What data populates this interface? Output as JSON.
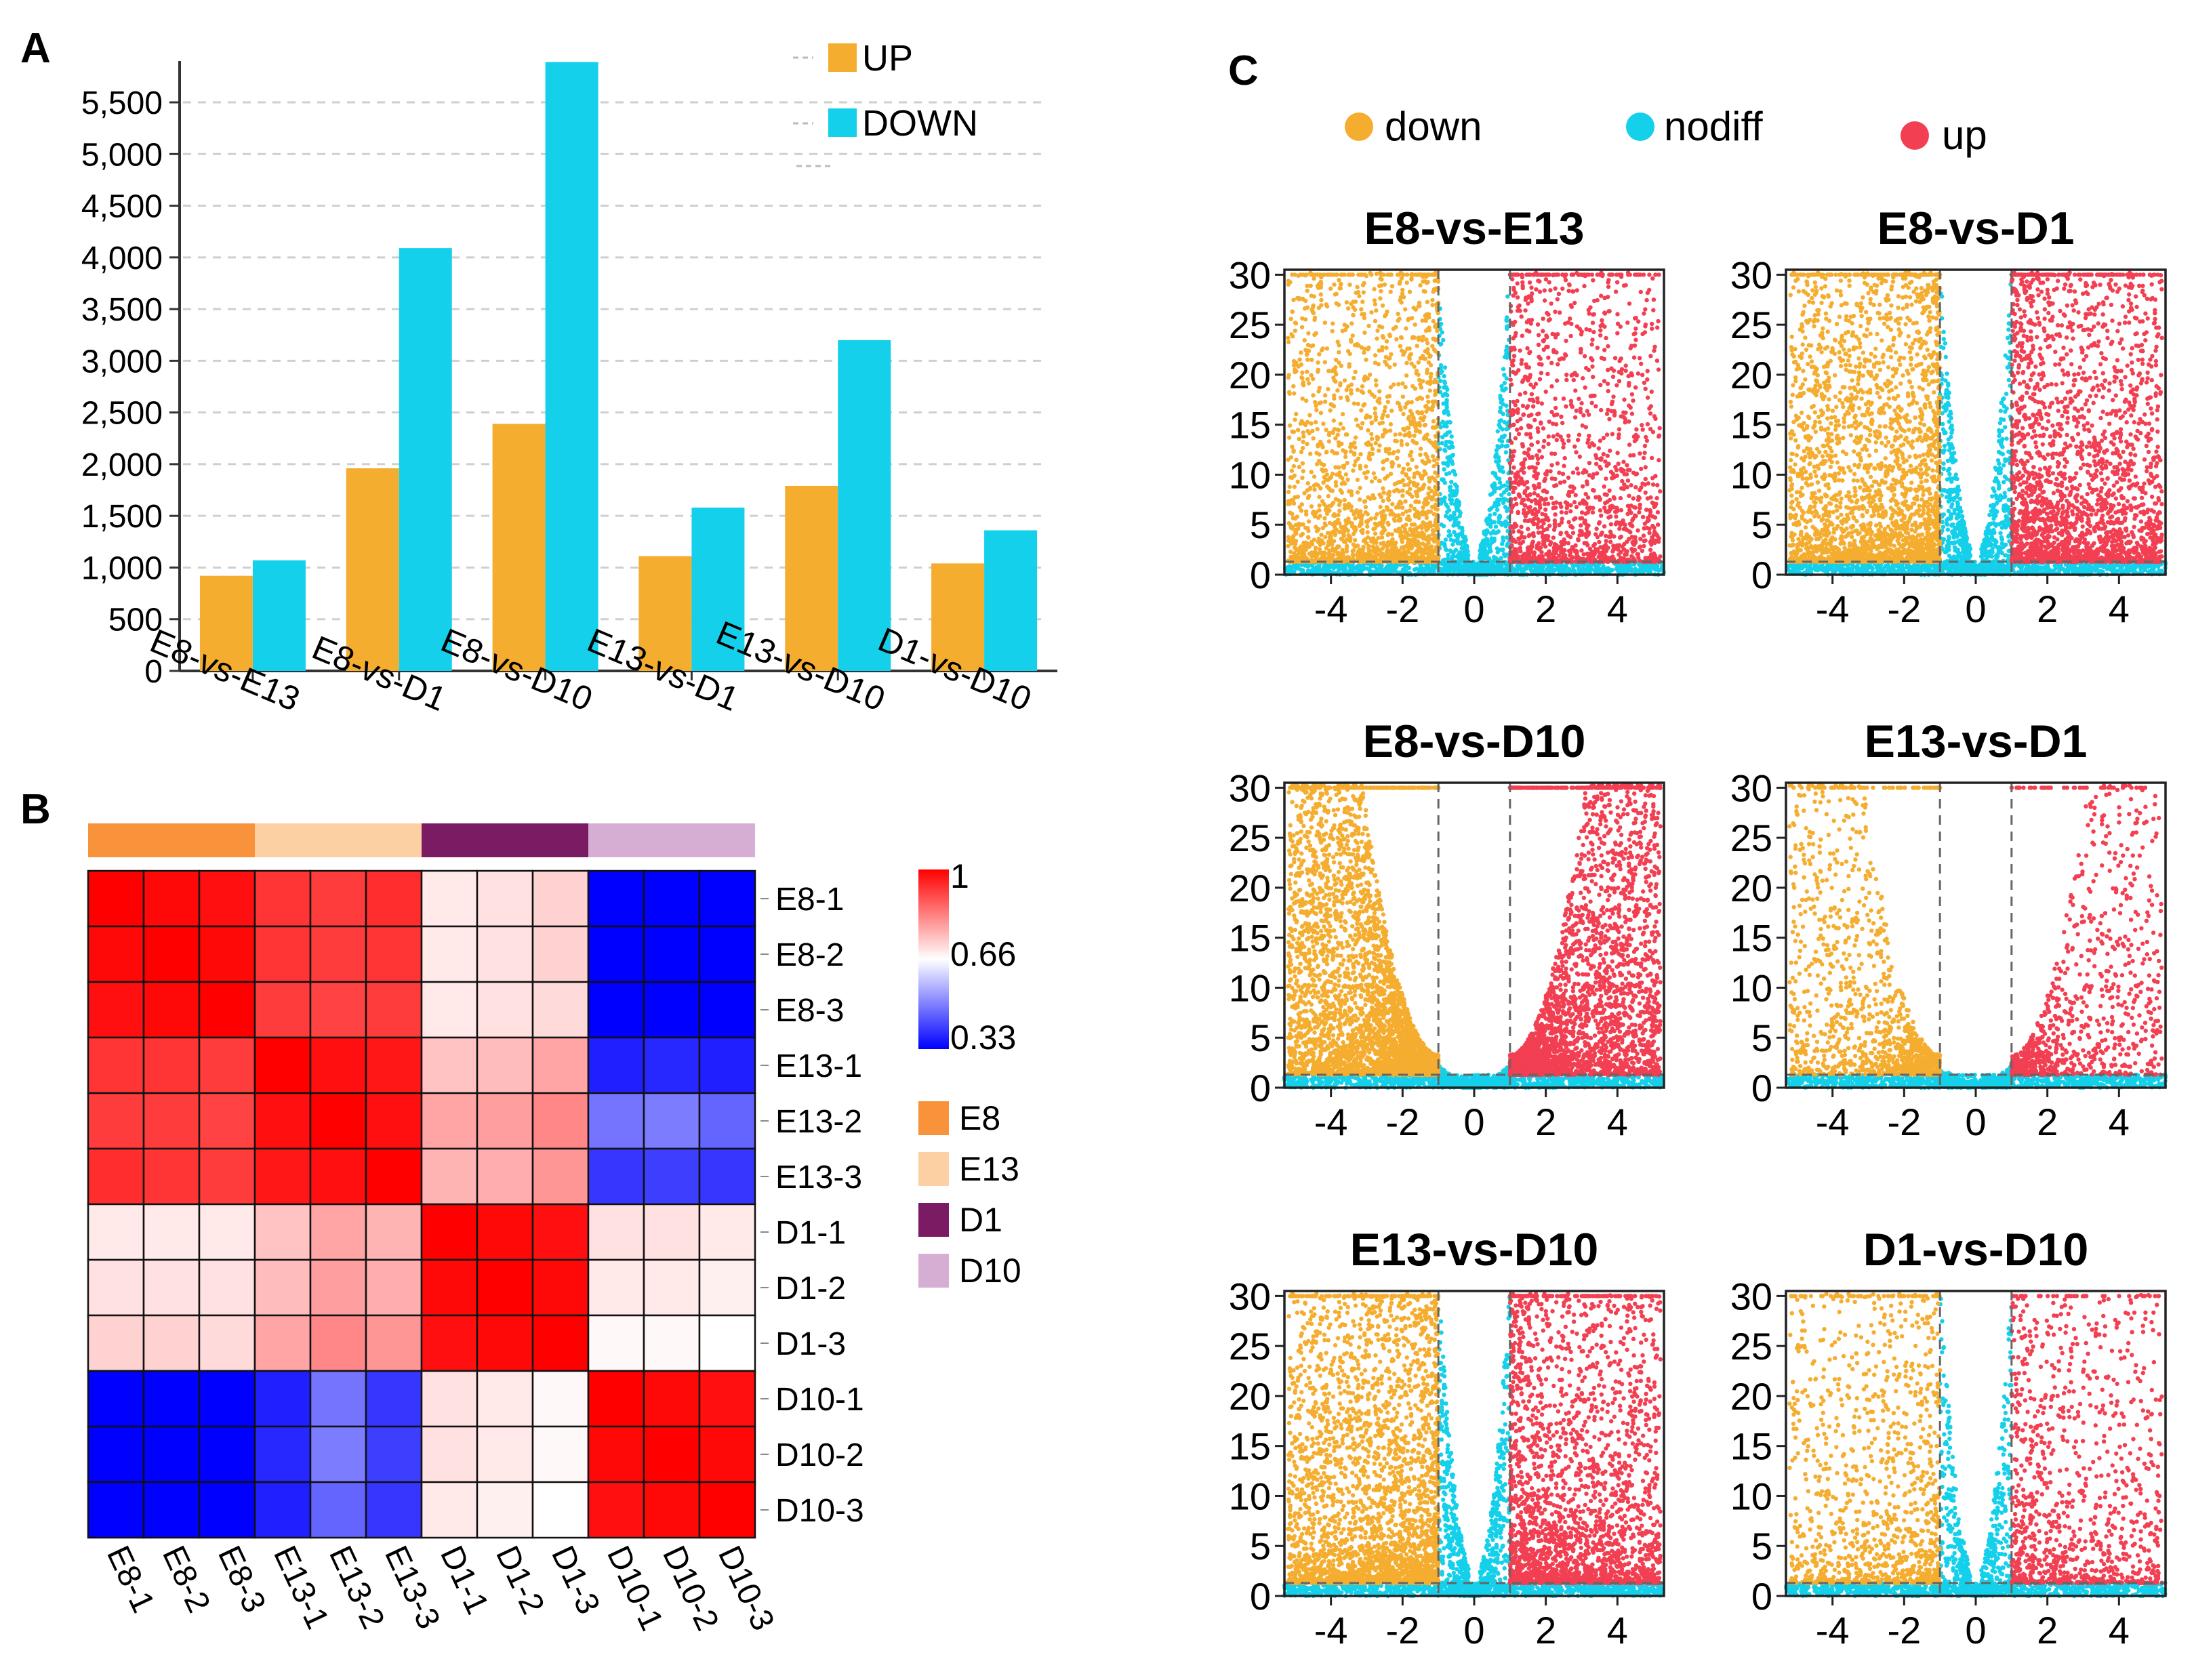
{
  "colors": {
    "up_bar": "#F5AD30",
    "down_bar": "#14D0EA",
    "volcano_down": "#F5AD30",
    "volcano_nodiff": "#14D0EA",
    "volcano_up": "#F23F52",
    "heat_high": "#FF0000",
    "heat_mid": "#FFFFFF",
    "heat_low": "#0000FF",
    "group_E8": "#F8923B",
    "group_E13": "#FCD0A2",
    "group_D1": "#7B1B63",
    "group_D10": "#D7AED3"
  },
  "chart_data": [
    {
      "id": "A",
      "type": "bar",
      "panel_label": "A",
      "categories": [
        "E8-vs-E13",
        "E8-vs-D1",
        "E8-vs-D10",
        "E13-vs-D1",
        "E13-vs-D10",
        "D1-vs-D10"
      ],
      "series": [
        {
          "name": "UP",
          "values": [
            920,
            1960,
            2390,
            1110,
            1790,
            1040
          ]
        },
        {
          "name": "DOWN",
          "values": [
            1070,
            4090,
            5890,
            1580,
            3200,
            1360
          ]
        }
      ],
      "ylim": [
        0,
        5900
      ],
      "yticks": [
        0,
        500,
        1000,
        1500,
        2000,
        2500,
        3000,
        3500,
        4000,
        4500,
        5000,
        5500
      ],
      "ytick_labels": [
        "0",
        "500",
        "1,000",
        "1,500",
        "2,000",
        "2,500",
        "3,000",
        "3,500",
        "4,000",
        "4,500",
        "5,000",
        "5,500"
      ],
      "grid": true,
      "legend": "top-right",
      "legend_labels": [
        "UP",
        "DOWN"
      ]
    },
    {
      "id": "B",
      "type": "heatmap",
      "panel_label": "B",
      "rows": [
        "E8-1",
        "E8-2",
        "E8-3",
        "E13-1",
        "E13-2",
        "E13-3",
        "D1-1",
        "D1-2",
        "D1-3",
        "D10-1",
        "D10-2",
        "D10-3"
      ],
      "cols": [
        "E8-1",
        "E8-2",
        "E8-3",
        "E13-1",
        "E13-2",
        "E13-3",
        "D1-1",
        "D1-2",
        "D1-3",
        "D10-1",
        "D10-2",
        "D10-3"
      ],
      "groups": [
        "E8",
        "E8",
        "E8",
        "E13",
        "E13",
        "E13",
        "D1",
        "D1",
        "D1",
        "D10",
        "D10",
        "D10"
      ],
      "values": [
        [
          1.0,
          0.99,
          0.98,
          0.93,
          0.92,
          0.94,
          0.69,
          0.7,
          0.72,
          0.27,
          0.28,
          0.28
        ],
        [
          0.99,
          1.0,
          0.99,
          0.93,
          0.92,
          0.93,
          0.69,
          0.7,
          0.72,
          0.27,
          0.28,
          0.28
        ],
        [
          0.98,
          0.99,
          1.0,
          0.92,
          0.91,
          0.92,
          0.69,
          0.7,
          0.71,
          0.26,
          0.27,
          0.27
        ],
        [
          0.93,
          0.93,
          0.92,
          1.0,
          0.98,
          0.97,
          0.74,
          0.75,
          0.78,
          0.37,
          0.38,
          0.37
        ],
        [
          0.92,
          0.92,
          0.91,
          0.98,
          1.0,
          0.98,
          0.78,
          0.79,
          0.82,
          0.48,
          0.49,
          0.46
        ],
        [
          0.94,
          0.93,
          0.92,
          0.97,
          0.98,
          1.0,
          0.76,
          0.77,
          0.8,
          0.4,
          0.41,
          0.4
        ],
        [
          0.69,
          0.69,
          0.69,
          0.74,
          0.78,
          0.76,
          1.0,
          0.99,
          0.98,
          0.7,
          0.7,
          0.69
        ],
        [
          0.7,
          0.7,
          0.7,
          0.75,
          0.79,
          0.77,
          0.99,
          1.0,
          0.99,
          0.69,
          0.69,
          0.68
        ],
        [
          0.72,
          0.72,
          0.71,
          0.78,
          0.82,
          0.8,
          0.98,
          0.99,
          1.0,
          0.67,
          0.67,
          0.66
        ],
        [
          0.27,
          0.27,
          0.26,
          0.37,
          0.48,
          0.4,
          0.7,
          0.69,
          0.67,
          1.0,
          0.99,
          0.98
        ],
        [
          0.28,
          0.28,
          0.27,
          0.38,
          0.49,
          0.41,
          0.7,
          0.69,
          0.67,
          0.99,
          1.0,
          0.99
        ],
        [
          0.28,
          0.28,
          0.27,
          0.37,
          0.46,
          0.4,
          0.69,
          0.68,
          0.66,
          0.98,
          0.99,
          1.0
        ]
      ],
      "scale": {
        "min": 0.33,
        "mid": 0.66,
        "max": 1,
        "tick_labels": [
          "1",
          "0.66",
          "0.33"
        ]
      },
      "legend_groups": [
        "E8",
        "E13",
        "D1",
        "D10"
      ]
    },
    {
      "id": "C",
      "type": "scatter",
      "panel_label": "C",
      "legend": "top",
      "legend_labels": [
        "down",
        "nodiff",
        "up"
      ],
      "xlim": [
        -5.3,
        5.3
      ],
      "ylim": [
        0,
        30.5
      ],
      "xticks": [
        -4,
        -2,
        0,
        2,
        4
      ],
      "xtick_labels": [
        "-4",
        "-2",
        "0",
        "2",
        "4"
      ],
      "yticks": [
        0,
        5,
        10,
        15,
        20,
        25,
        30
      ],
      "ytick_labels": [
        "0",
        "5",
        "10",
        "15",
        "20",
        "25",
        "30"
      ],
      "thresholds": {
        "log2fc": [
          -1,
          1
        ],
        "neg_log10_p": 1.3
      },
      "plots": [
        {
          "title": "E8-vs-E13",
          "style": "wide",
          "down_points": 2000,
          "up_points": 1500,
          "nodiff_points": 700
        },
        {
          "title": "E8-vs-D1",
          "style": "wide",
          "down_points": 2600,
          "up_points": 2400,
          "nodiff_points": 800
        },
        {
          "title": "E8-vs-D10",
          "style": "v",
          "down_points": 3800,
          "up_points": 3000,
          "nodiff_points": 500
        },
        {
          "title": "E13-vs-D1",
          "style": "v",
          "down_points": 1200,
          "up_points": 900,
          "nodiff_points": 400
        },
        {
          "title": "E13-vs-D10",
          "style": "wide",
          "down_points": 2800,
          "up_points": 2300,
          "nodiff_points": 800
        },
        {
          "title": "D1-vs-D10",
          "style": "wide",
          "down_points": 1100,
          "up_points": 1000,
          "nodiff_points": 600
        }
      ]
    }
  ]
}
